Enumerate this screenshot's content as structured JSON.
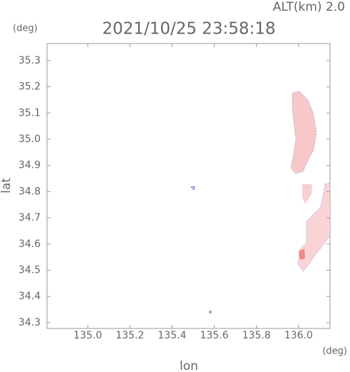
{
  "chart_data": {
    "type": "map",
    "title": "2021/10/25 23:58:18",
    "altitude_label": "ALT(km)  2.0",
    "x_label": "lon",
    "y_label": "lat",
    "x_unit": "(deg)",
    "y_unit": "(deg)",
    "xlim": [
      134.807,
      136.149
    ],
    "ylim": [
      34.278,
      35.365
    ],
    "xticks": [
      {
        "value": 135.0,
        "label": "135.0"
      },
      135.2,
      135.4,
      135.6,
      135.8,
      {
        "value": 136.0,
        "label": "136.0"
      }
    ],
    "yticks": [
      34.3,
      34.4,
      34.5,
      34.6,
      34.7,
      34.8,
      34.9,
      {
        "value": 35.0,
        "label": "35.0"
      },
      35.1,
      35.2,
      35.3
    ],
    "grid": false
  }
}
